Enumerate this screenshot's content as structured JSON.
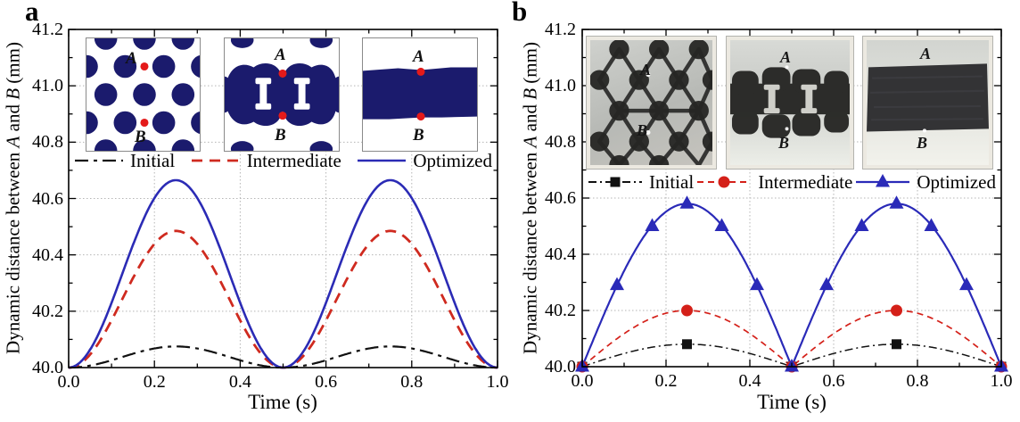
{
  "figure": {
    "panels": [
      {
        "letter": "a"
      },
      {
        "letter": "b"
      }
    ]
  },
  "labels": {
    "ylabel_pre": "Dynamic distance between ",
    "ylabel_a": "A",
    "ylabel_mid": " and ",
    "ylabel_b": "B",
    "ylabel_post": " (mm)",
    "xlabel": "Time (s)"
  },
  "style_colors": {
    "inset_topology_fill": "#1b1b6d",
    "inset_point_marker": "#e41a1a",
    "grid": "#b5b5b5",
    "axis": "#000000"
  },
  "chart_data": [
    {
      "type": "line",
      "panel": "a",
      "xlabel": "Time (s)",
      "ylabel": "Dynamic distance between A and B (mm)",
      "xlim": [
        0.0,
        1.0
      ],
      "ylim": [
        40.0,
        41.2
      ],
      "xticks": [
        "0.0",
        "0.2",
        "0.4",
        "0.6",
        "0.8",
        "1.0"
      ],
      "yticks": [
        "40.0",
        "40.2",
        "40.4",
        "40.6",
        "40.8",
        "41.0",
        "41.2"
      ],
      "grid": "dotted-major",
      "legend_position": "inside-top",
      "series": [
        {
          "name": "Initial",
          "color": "#111111",
          "line": "dashdot",
          "width": 2.2,
          "marker": "none",
          "model": "sin2",
          "baseline": 40.0,
          "amplitude": 0.075,
          "peaks_t": [
            0.25,
            0.75
          ],
          "peak_value": 40.075,
          "min_value": 40.0
        },
        {
          "name": "Intermediate",
          "color": "#cf2a1f",
          "line": "dashed",
          "width": 2.8,
          "marker": "none",
          "model": "sin2",
          "baseline": 40.0,
          "amplitude": 0.485,
          "peaks_t": [
            0.25,
            0.75
          ],
          "peak_value": 40.485,
          "min_value": 40.0
        },
        {
          "name": "Optimized",
          "color": "#2b2bb5",
          "line": "solid",
          "width": 2.6,
          "marker": "none",
          "model": "sin2",
          "baseline": 40.0,
          "amplitude": 0.665,
          "peaks_t": [
            0.25,
            0.75
          ],
          "peak_value": 40.665,
          "min_value": 40.0
        }
      ],
      "insets": [
        {
          "name": "initial-topology",
          "point_a": "A",
          "point_b": "B"
        },
        {
          "name": "intermediate-topology",
          "point_a": "A",
          "point_b": "B"
        },
        {
          "name": "optimized-topology",
          "point_a": "A",
          "point_b": "B"
        }
      ]
    },
    {
      "type": "line",
      "panel": "b",
      "xlabel": "Time (s)",
      "ylabel": "Dynamic distance between A and B (mm)",
      "xlim": [
        0.0,
        1.0
      ],
      "ylim": [
        40.0,
        41.2
      ],
      "xticks": [
        "0.0",
        "0.2",
        "0.4",
        "0.6",
        "0.8",
        "1.0"
      ],
      "yticks": [
        "40.0",
        "40.2",
        "40.4",
        "40.6",
        "40.8",
        "41.0",
        "41.2"
      ],
      "grid": "dotted-major",
      "legend_position": "inside-top",
      "series": [
        {
          "name": "Initial",
          "color": "#111111",
          "line": "dashdot",
          "width": 1.5,
          "marker": "square",
          "model": "abs_sin",
          "baseline": 40.0,
          "amplitude": 0.08,
          "points": {
            "t": [
              0.0,
              0.25,
              0.5,
              0.75,
              1.0
            ],
            "v": [
              40.0,
              40.08,
              40.0,
              40.08,
              40.0
            ]
          }
        },
        {
          "name": "Intermediate",
          "color": "#d42019",
          "line": "dashed",
          "width": 1.7,
          "marker": "circle",
          "model": "abs_sin",
          "baseline": 40.0,
          "amplitude": 0.2,
          "points": {
            "t": [
              0.0,
              0.25,
              0.5,
              0.75,
              1.0
            ],
            "v": [
              40.0,
              40.2,
              40.0,
              40.2,
              40.0
            ]
          }
        },
        {
          "name": "Optimized",
          "color": "#2a2ab8",
          "line": "solid",
          "width": 2.2,
          "marker": "triangle",
          "model": "abs_sin",
          "baseline": 40.0,
          "amplitude": 0.58,
          "points": {
            "t": [
              0.0,
              0.083,
              0.167,
              0.25,
              0.333,
              0.417,
              0.5,
              0.583,
              0.667,
              0.75,
              0.833,
              0.917,
              1.0
            ],
            "v": [
              40.0,
              40.29,
              40.5,
              40.58,
              40.5,
              40.29,
              40.0,
              40.29,
              40.5,
              40.58,
              40.5,
              40.29,
              40.0
            ]
          }
        }
      ],
      "insets": [
        {
          "name": "initial-specimen-photo",
          "point_a": "A",
          "point_b": "B"
        },
        {
          "name": "intermediate-specimen-photo",
          "point_a": "A",
          "point_b": "B"
        },
        {
          "name": "optimized-specimen-photo",
          "point_a": "A",
          "point_b": "B"
        }
      ]
    }
  ]
}
